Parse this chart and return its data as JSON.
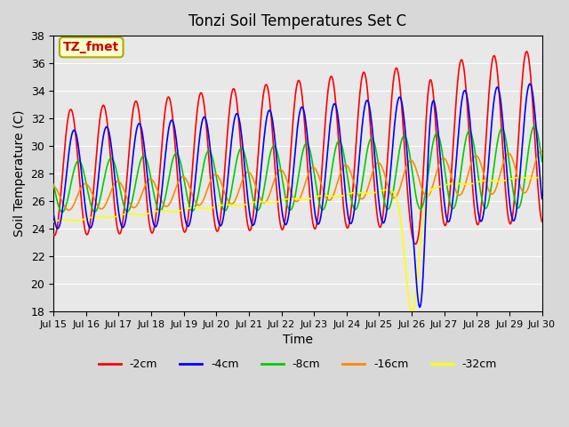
{
  "title": "Tonzi Soil Temperatures Set C",
  "xlabel": "Time",
  "ylabel": "Soil Temperature (C)",
  "ylim": [
    18,
    38
  ],
  "yticks": [
    18,
    20,
    22,
    24,
    26,
    28,
    30,
    32,
    34,
    36,
    38
  ],
  "xtick_labels": [
    "Jul 15",
    "Jul 16",
    "Jul 17",
    "Jul 18",
    "Jul 19",
    "Jul 20",
    "Jul 21",
    "Jul 22",
    "Jul 23",
    "Jul 24",
    "Jul 25",
    "Jul 26",
    "Jul 27",
    "Jul 28",
    "Jul 29",
    "Jul 30"
  ],
  "colors": {
    "-2cm": "#ff0000",
    "-4cm": "#0000ff",
    "-8cm": "#00cc00",
    "-16cm": "#ff8800",
    "-32cm": "#ffff00"
  },
  "legend_labels": [
    "-2cm",
    "-4cm",
    "-8cm",
    "-16cm",
    "-32cm"
  ],
  "annotation_text": "TZ_fmet",
  "annotation_bg": "#ffffcc",
  "annotation_border": "#aaaa00",
  "annotation_text_color": "#cc0000",
  "plot_bg_color": "#e8e8e8",
  "fig_bg_color": "#d8d8d8",
  "figsize": [
    6.4,
    4.8
  ],
  "dpi": 100
}
